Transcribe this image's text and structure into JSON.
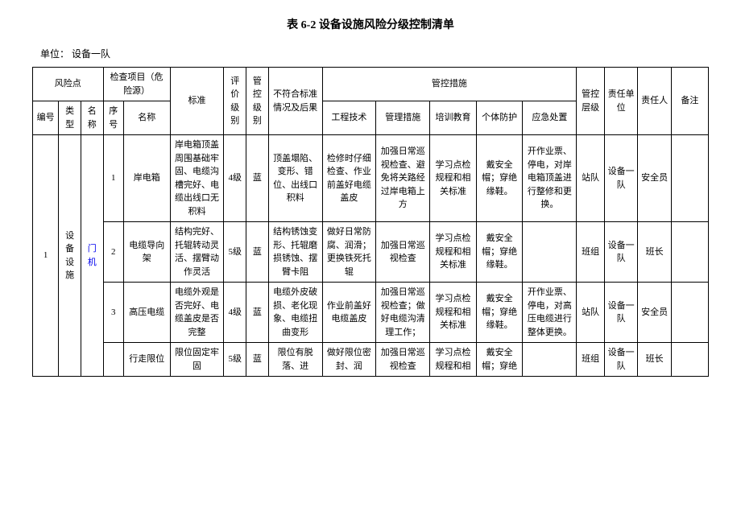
{
  "title": "表 6-2 设备设施风险分级控制清单",
  "unit_label": "单位：",
  "unit_value": "设备一队",
  "headers": {
    "risk_point": "风险点",
    "check_item": "检查项目（危险源）",
    "standard": "标准",
    "eval_level": "评价级别",
    "ctrl_level": "管控级别",
    "nonconform": "不符合标准情况及后果",
    "measures": "管控措施",
    "ctrl_layer": "管控层级",
    "resp_unit": "责任单位",
    "resp_person": "责任人",
    "remark": "备注",
    "num": "编号",
    "type": "类型",
    "name": "名称",
    "seq": "序号",
    "chk_name": "名称",
    "engineering": "工程技术",
    "management": "管理措施",
    "training": "培训教育",
    "ppe": "个体防护",
    "emergency": "应急处置"
  },
  "main_row": {
    "num": "1",
    "type": "设备设施",
    "name": "门机"
  },
  "rows": [
    {
      "seq": "1",
      "chk_name": "岸电箱",
      "standard": "岸电箱顶盖周围基础牢固、电缆沟槽完好、电缆出线口无积料",
      "eval_level": "4级",
      "ctrl_level": "蓝",
      "nonconform": "顶盖塌陷、变形、错位、出线口积料",
      "engineering": "检修时仔细检查、作业前盖好电缆盖皮",
      "management": "加强日常巡视检查、避免将关路经过岸电箱上方",
      "training": "学习点检规程和相关标准",
      "ppe": "戴安全帽；穿绝缘鞋。",
      "emergency": "开作业票、停电，对岸电箱顶盖进行整修和更换。",
      "ctrl_layer": "站队",
      "resp_unit": "设备一队",
      "resp_person": "安全员",
      "remark": ""
    },
    {
      "seq": "2",
      "chk_name": "电缆导向架",
      "standard": "结构完好、托辊转动灵活、摆臂动作灵活",
      "eval_level": "5级",
      "ctrl_level": "蓝",
      "nonconform": "结构锈蚀变形、托辊磨损锈蚀、摆臂卡阻",
      "engineering": "做好日常防腐、润滑；更换铁死托辊",
      "management": "加强日常巡视检查",
      "training": "学习点检规程和相关标准",
      "ppe": "戴安全帽；穿绝缘鞋。",
      "emergency": "",
      "ctrl_layer": "班组",
      "resp_unit": "设备一队",
      "resp_person": "班长",
      "remark": ""
    },
    {
      "seq": "3",
      "chk_name": "高压电缆",
      "standard": "电缆外观是否完好、电缆盖皮是否完整",
      "eval_level": "4级",
      "ctrl_level": "蓝",
      "nonconform": "电缆外皮破损、老化现象、电缆扭曲变形",
      "engineering": "作业前盖好电缆盖皮",
      "management": "加强日常巡视检查；做好电缆沟清理工作；",
      "training": "学习点检规程和相关标准",
      "ppe": "戴安全帽；穿绝缘鞋。",
      "emergency": "开作业票、停电，对高压电缆进行整体更换。",
      "ctrl_layer": "站队",
      "resp_unit": "设备一队",
      "resp_person": "安全员",
      "remark": ""
    },
    {
      "seq": "",
      "chk_name": "行走限位",
      "standard": "限位固定牢固",
      "eval_level": "5级",
      "ctrl_level": "蓝",
      "nonconform": "限位有脱落、进",
      "engineering": "做好限位密封、润",
      "management": "加强日常巡视检查",
      "training": "学习点检规程和相",
      "ppe": "戴安全帽；穿绝",
      "emergency": "",
      "ctrl_layer": "班组",
      "resp_unit": "设备一队",
      "resp_person": "班长",
      "remark": ""
    }
  ]
}
